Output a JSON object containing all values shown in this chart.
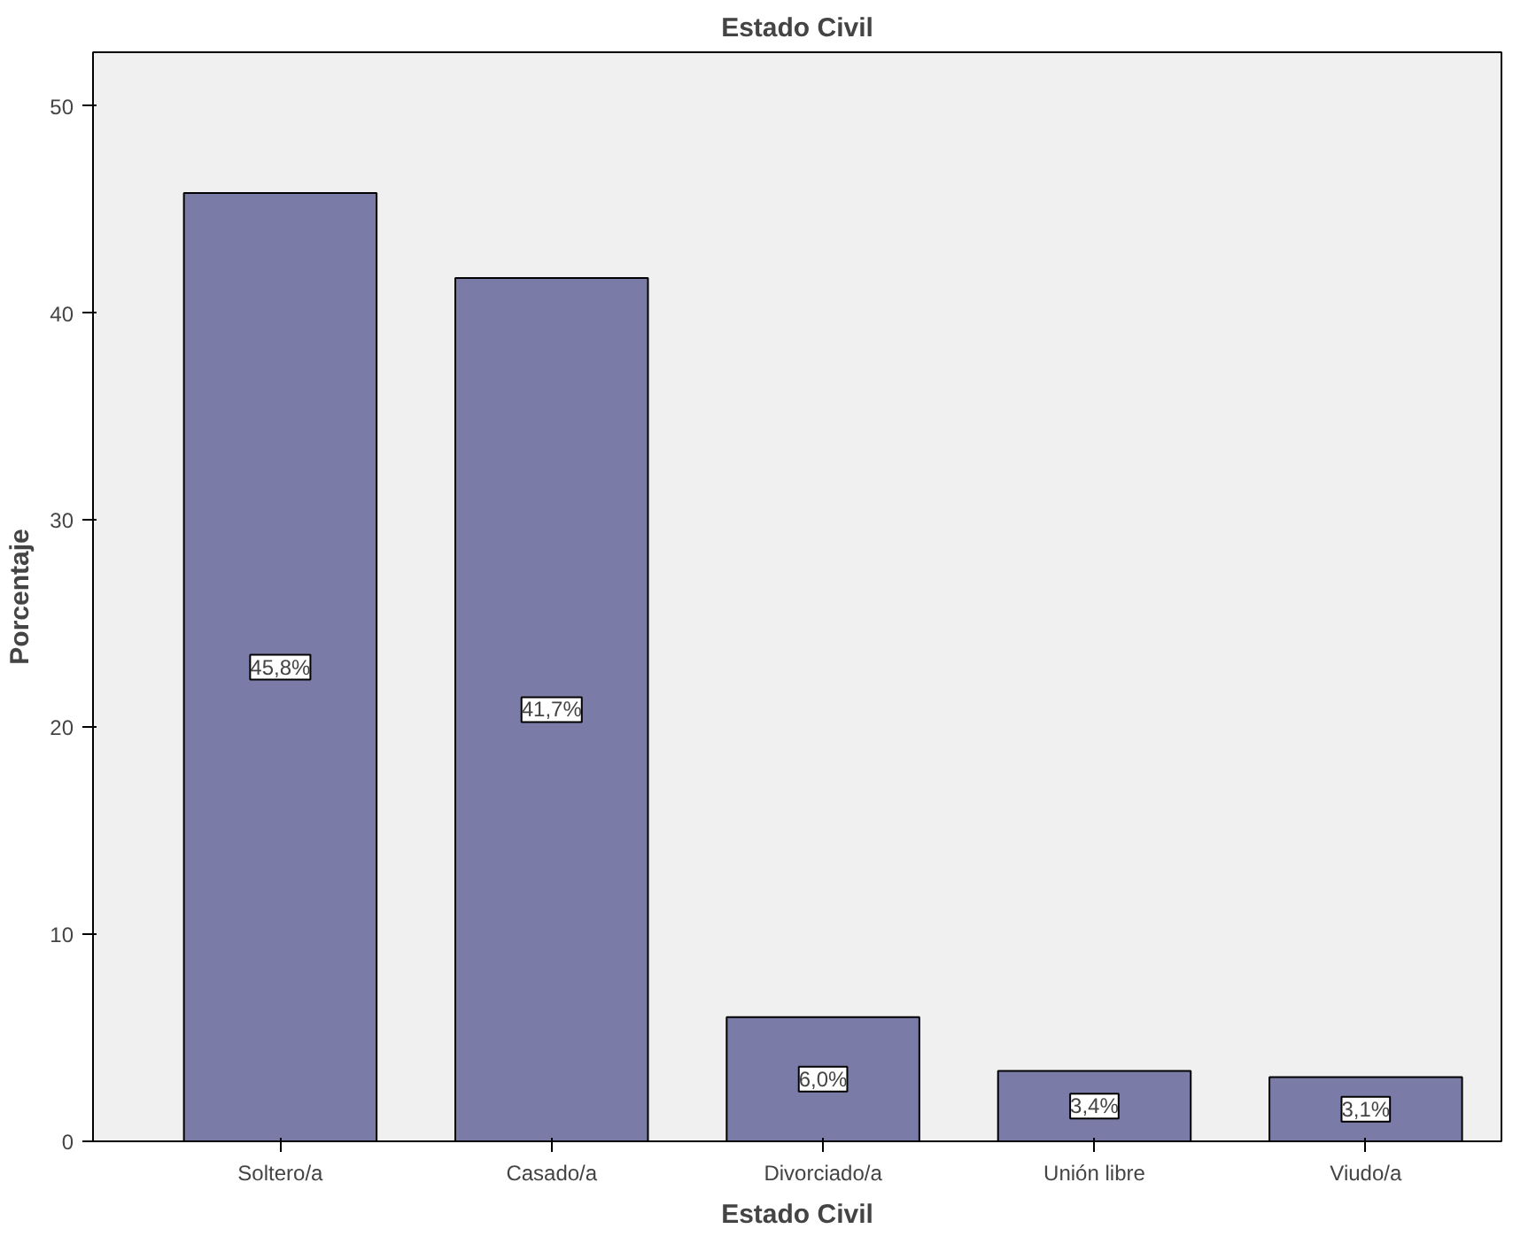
{
  "chart_data": {
    "type": "bar",
    "title": "Estado Civil",
    "xlabel": "Estado Civil",
    "ylabel": "Porcentaje",
    "categories": [
      "Soltero/a",
      "Casado/a",
      "Divorciado/a",
      "Unión libre",
      "Viudo/a"
    ],
    "values": [
      45.8,
      41.7,
      6.0,
      3.4,
      3.1
    ],
    "value_labels": [
      "45,8%",
      "41,7%",
      "6,0%",
      "3,4%",
      "3,1%"
    ],
    "color": "#7b7ba8",
    "ylim": [
      0,
      52.6
    ],
    "yticks": [
      0,
      10,
      20,
      30,
      40,
      50
    ],
    "grid": false
  }
}
